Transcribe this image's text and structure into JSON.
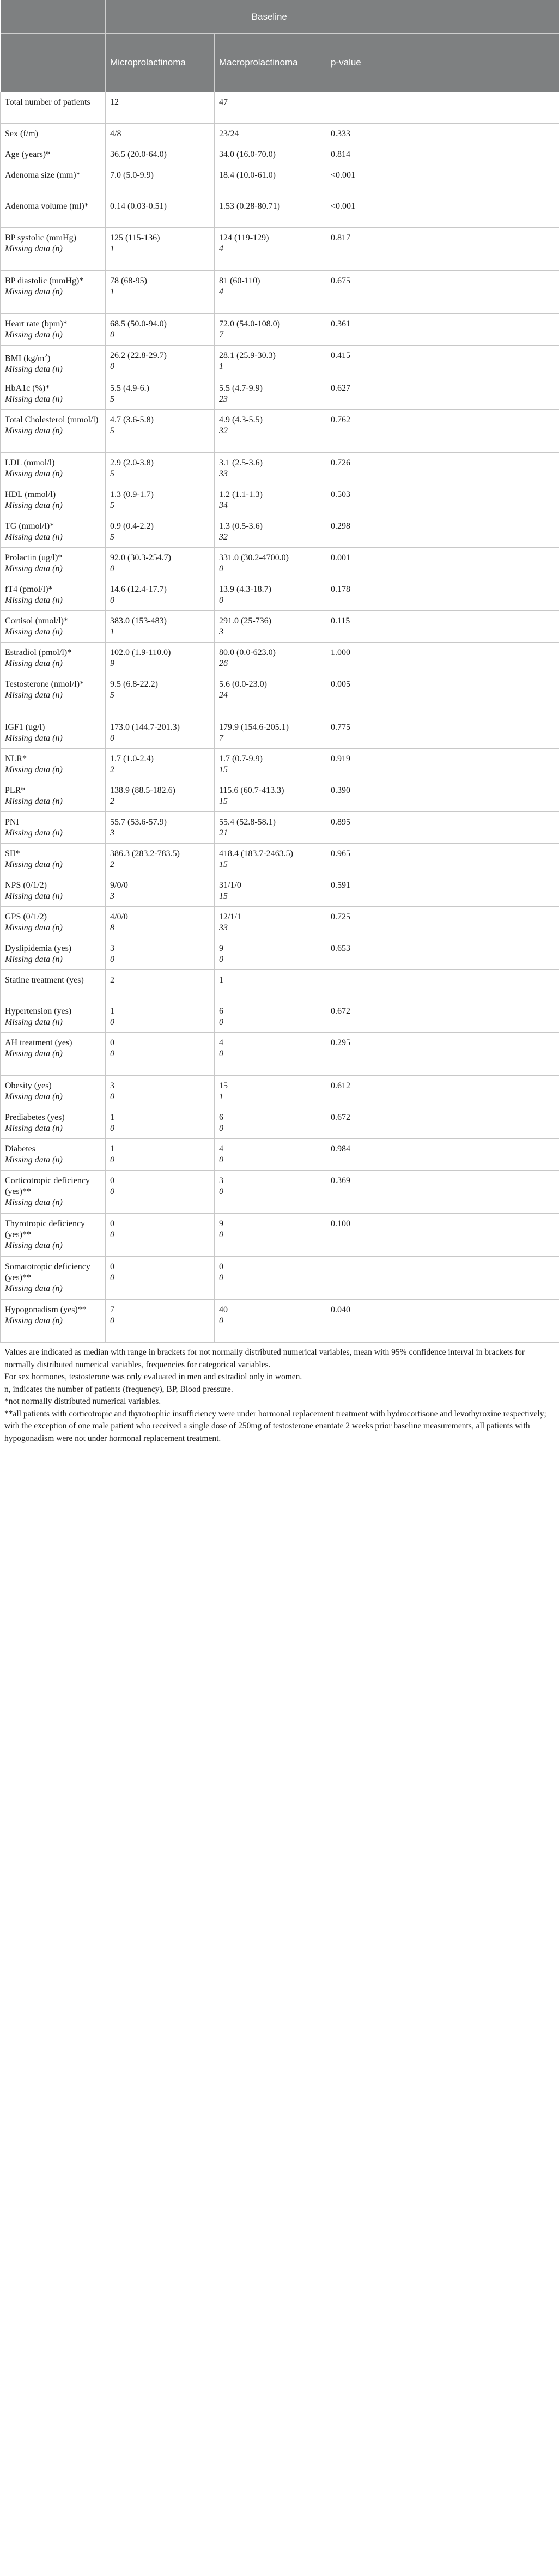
{
  "table": {
    "group_header": "Baseline",
    "col_headers": [
      "Microprolactinoma",
      "Macroprolactinoma",
      "p-value"
    ],
    "rows": [
      {
        "label": "Total number of patients",
        "micro": "12",
        "macro": "47",
        "p": "",
        "miss_label": "",
        "miss_micro": "",
        "miss_macro": "",
        "h": 58
      },
      {
        "label": "Sex (f/m)",
        "micro": "4/8",
        "macro": "23/24",
        "p": "0.333",
        "miss_label": "",
        "miss_micro": "",
        "miss_macro": "",
        "h": 38
      },
      {
        "label": "Age (years)*",
        "micro": "36.5 (20.0-64.0)",
        "macro": "34.0 (16.0-70.0)",
        "p": "0.814",
        "miss_label": "",
        "miss_micro": "",
        "miss_macro": "",
        "h": 38
      },
      {
        "label": "Adenoma size (mm)*",
        "micro": "7.0 (5.0-9.9)",
        "macro": "18.4 (10.0-61.0)",
        "p": "<0.001",
        "miss_label": "",
        "miss_micro": "",
        "miss_macro": "",
        "h": 57
      },
      {
        "label": "Adenoma volume (ml)*",
        "micro": "0.14 (0.03-0.51)",
        "macro": "1.53 (0.28-80.71)",
        "p": "<0.001",
        "miss_label": "",
        "miss_micro": "",
        "miss_macro": "",
        "h": 58
      },
      {
        "label": "BP systolic (mmHg)",
        "micro": "125 (115-136)",
        "macro": "124 (119-129)",
        "p": "0.817",
        "miss_label": "Missing data (n)",
        "miss_micro": "1",
        "miss_macro": "4",
        "h": 79
      },
      {
        "label": "BP diastolic (mmHg)*",
        "micro": "78 (68-95)",
        "macro": "81 (60-110)",
        "p": "0.675",
        "miss_label": "Missing data (n)",
        "miss_micro": "1",
        "miss_macro": "4",
        "h": 79
      },
      {
        "label": "Heart rate (bpm)*",
        "micro": "68.5 (50.0-94.0)",
        "macro": "72.0 (54.0-108.0)",
        "p": "0.361",
        "miss_label": "Missing data (n)",
        "miss_micro": "0",
        "miss_macro": "7",
        "h": 58
      },
      {
        "label": "BMI (kg/m2)",
        "micro": "26.2 (22.8-29.7)",
        "macro": "28.1 (25.9-30.3)",
        "p": "0.415",
        "miss_label": "Missing data (n)",
        "miss_micro": "0",
        "miss_macro": "1",
        "h": 58
      },
      {
        "label": "HbA1c (%)*",
        "micro": "5.5 (4.9-6.)",
        "macro": "5.5 (4.7-9.9)",
        "p": "0.627",
        "miss_label": "Missing data (n)",
        "miss_micro": "5",
        "miss_macro": "23",
        "h": 58
      },
      {
        "label": "Total Cholesterol (mmol/l)",
        "micro": "4.7 (3.6-5.8)",
        "macro": "4.9 (4.3-5.5)",
        "p": "0.762",
        "miss_label": "Missing data (n)",
        "miss_micro": "5",
        "miss_macro": "32",
        "h": 79
      },
      {
        "label": "LDL (mmol/l)",
        "micro": "2.9 (2.0-3.8)",
        "macro": "3.1 (2.5-3.6)",
        "p": "0.726",
        "miss_label": "Missing data (n)",
        "miss_micro": "5",
        "miss_macro": "33",
        "h": 58
      },
      {
        "label": "HDL (mmol/l)",
        "micro": "1.3 (0.9-1.7)",
        "macro": "1.2 (1.1-1.3)",
        "p": "0.503",
        "miss_label": "Missing data (n)",
        "miss_micro": "5",
        "miss_macro": "34",
        "h": 58
      },
      {
        "label": "TG (mmol/l)*",
        "micro": "0.9 (0.4-2.2)",
        "macro": "1.3 (0.5-3.6)",
        "p": "0.298",
        "miss_label": "Missing data (n)",
        "miss_micro": "5",
        "miss_macro": "32",
        "h": 58
      },
      {
        "label": "Prolactin (ug/l)*",
        "micro": "92.0 (30.3-254.7)",
        "macro": "331.0 (30.2-4700.0)",
        "p": "0.001",
        "miss_label": "Missing data (n)",
        "miss_micro": "0",
        "miss_macro": "0",
        "h": 58
      },
      {
        "label": "fT4 (pmol/l)*",
        "micro": "14.6 (12.4-17.7)",
        "macro": "13.9 (4.3-18.7)",
        "p": "0.178",
        "miss_label": "Missing data (n)",
        "miss_micro": "0",
        "miss_macro": "0",
        "h": 58
      },
      {
        "label": "Cortisol (nmol/l)*",
        "micro": "383.0 (153-483)",
        "macro": "291.0 (25-736)",
        "p": "0.115",
        "miss_label": "Missing data (n)",
        "miss_micro": "1",
        "miss_macro": "3",
        "h": 58
      },
      {
        "label": "Estradiol (pmol/l)*",
        "micro": "102.0 (1.9-110.0)",
        "macro": "80.0 (0.0-623.0)",
        "p": "1.000",
        "miss_label": "Missing data (n)",
        "miss_micro": "9",
        "miss_macro": "26",
        "h": 58
      },
      {
        "label": "Testosterone (nmol/l)*",
        "micro": "9.5 (6.8-22.2)",
        "macro": "5.6 (0.0-23.0)",
        "p": "0.005",
        "miss_label": "Missing data (n)",
        "miss_micro": "5",
        "miss_macro": "24",
        "h": 79
      },
      {
        "label": "IGF1 (ug/l)",
        "micro": "173.0 (144.7-201.3)",
        "macro": "179.9 (154.6-205.1)",
        "p": "0.775",
        "miss_label": "Missing data (n)",
        "miss_micro": "0",
        "miss_macro": "7",
        "h": 58
      },
      {
        "label": "NLR*",
        "micro": "1.7 (1.0-2.4)",
        "macro": "1.7 (0.7-9.9)",
        "p": "0.919",
        "miss_label": "Missing data (n)",
        "miss_micro": "2",
        "miss_macro": "15",
        "h": 58
      },
      {
        "label": "PLR*",
        "micro": "138.9 (88.5-182.6)",
        "macro": "115.6 (60.7-413.3)",
        "p": "0.390",
        "miss_label": "Missing data (n)",
        "miss_micro": "2",
        "miss_macro": "15",
        "h": 58
      },
      {
        "label": "PNI",
        "micro": "55.7 (53.6-57.9)",
        "macro": "55.4 (52.8-58.1)",
        "p": "0.895",
        "miss_label": "Missing data (n)",
        "miss_micro": "3",
        "miss_macro": "21",
        "h": 58
      },
      {
        "label": "SII*",
        "micro": "386.3 (283.2-783.5)",
        "macro": "418.4 (183.7-2463.5)",
        "p": "0.965",
        "miss_label": "Missing data (n)",
        "miss_micro": "2",
        "miss_macro": "15",
        "h": 58
      },
      {
        "label": "NPS (0/1/2)",
        "micro": "9/0/0",
        "macro": "31/1/0",
        "p": "0.591",
        "miss_label": "Missing data (n)",
        "miss_micro": "3",
        "miss_macro": "15",
        "h": 58
      },
      {
        "label": "GPS (0/1/2)",
        "micro": "4/0/0",
        "macro": "12/1/1",
        "p": "0.725",
        "miss_label": "Missing data (n)",
        "miss_micro": "8",
        "miss_macro": "33",
        "h": 58
      },
      {
        "label": "Dyslipidemia (yes)",
        "micro": "3",
        "macro": "9",
        "p": "0.653",
        "miss_label": "Missing data (n)",
        "miss_micro": "0",
        "miss_macro": "0",
        "h": 58
      },
      {
        "label": "Statine treatment (yes)",
        "micro": "2",
        "macro": "1",
        "p": "",
        "miss_label": "",
        "miss_micro": "",
        "miss_macro": "",
        "h": 57
      },
      {
        "label": "Hypertension (yes)",
        "micro": "1",
        "macro": "6",
        "p": "0.672",
        "miss_label": "Missing data (n)",
        "miss_micro": "0",
        "miss_macro": "0",
        "h": 58
      },
      {
        "label": "AH treatment (yes)",
        "micro": "0",
        "macro": "4",
        "p": "0.295",
        "miss_label": "Missing data (n)",
        "miss_micro": "0",
        "miss_macro": "0",
        "h": 79
      },
      {
        "label": "Obesity (yes)",
        "micro": "3",
        "macro": "15",
        "p": "0.612",
        "miss_label": "Missing data (n)",
        "miss_micro": "0",
        "miss_macro": "1",
        "h": 58
      },
      {
        "label": "Prediabetes (yes)",
        "micro": "1",
        "macro": "6",
        "p": "0.672",
        "miss_label": "Missing data (n)",
        "miss_micro": "0",
        "miss_macro": "0",
        "h": 58
      },
      {
        "label": "Diabetes",
        "micro": "1",
        "macro": "4",
        "p": "0.984",
        "miss_label": "Missing data (n)",
        "miss_micro": "0",
        "miss_macro": "0",
        "h": 58
      },
      {
        "label": "Corticotropic deficiency (yes)**",
        "micro": "0",
        "macro": "3",
        "p": "0.369",
        "miss_label": "Missing data (n)",
        "miss_micro": "0",
        "miss_macro": "0",
        "h": 79
      },
      {
        "label": "Thyrotropic deficiency (yes)**",
        "micro": "0",
        "macro": "9",
        "p": "0.100",
        "miss_label": "Missing data (n)",
        "miss_micro": "0",
        "miss_macro": "0",
        "h": 79
      },
      {
        "label": "Somatotropic deficiency (yes)**",
        "micro": "0",
        "macro": "0",
        "p": "",
        "miss_label": "Missing data (n)",
        "miss_micro": "0",
        "miss_macro": "0",
        "h": 79
      },
      {
        "label": "Hypogonadism (yes)**",
        "micro": "7",
        "macro": "40",
        "p": "0.040",
        "miss_label": "Missing data (n)",
        "miss_micro": "0",
        "miss_macro": "0",
        "h": 79
      }
    ]
  },
  "notes": [
    "Values are indicated as median with range in brackets for not normally distributed numerical variables, mean with 95% confidence interval in brackets for normally distributed numerical variables, frequencies for categorical variables.",
    "For sex hormones, testosterone was only evaluated in men and estradiol only in women.",
    "n, indicates the number of patients (frequency), BP, Blood pressure.",
    "*not normally distributed numerical variables.",
    "**all patients with corticotropic and thyrotrophic insufficiency were under hormonal replacement treatment with hydrocortisone and levothyroxine respectively; with the exception of one male patient who received a single dose of 250mg of testosterone enantate 2 weeks prior baseline measurements, all patients with hypogonadism were not under hormonal replacement treatment."
  ]
}
